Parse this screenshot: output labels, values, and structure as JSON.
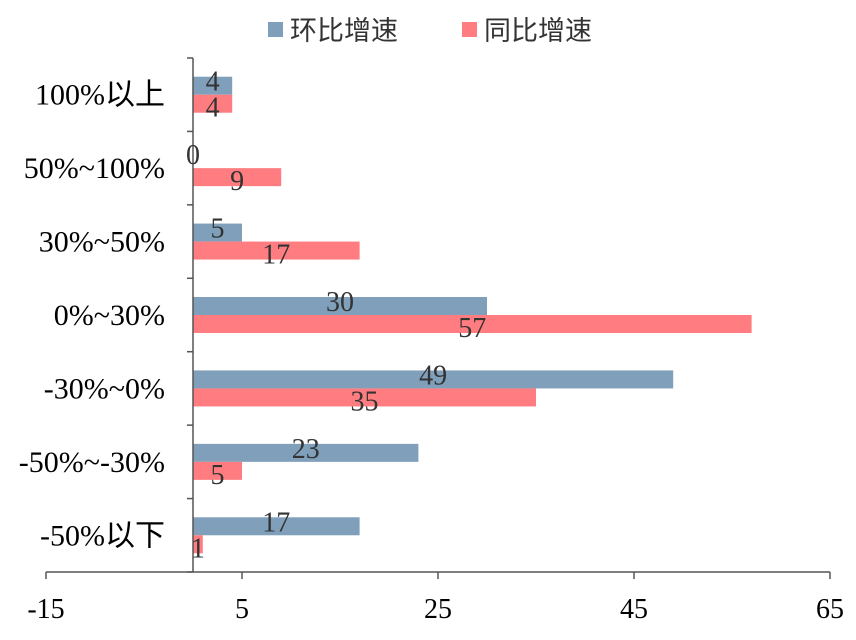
{
  "chart_data": {
    "type": "bar",
    "orientation": "horizontal",
    "categories": [
      "100%以上",
      "50%~100%",
      "30%~50%",
      "0%~30%",
      "-30%~0%",
      "-50%~-30%",
      "-50%以下"
    ],
    "series": [
      {
        "name": "环比增速",
        "values": [
          4,
          0,
          5,
          30,
          49,
          23,
          17
        ],
        "color": "#7f9fba"
      },
      {
        "name": "同比增速",
        "values": [
          4,
          9,
          17,
          57,
          35,
          5,
          1
        ],
        "color": "#ff7c80"
      }
    ],
    "xlim": [
      -15,
      65
    ],
    "xticks": [
      -15,
      5,
      25,
      45,
      65
    ],
    "xtick_labels": [
      "-15",
      "5",
      "25",
      "45",
      "65"
    ],
    "legend_position": "top-center",
    "grid": false,
    "title": "",
    "xlabel": "",
    "ylabel": ""
  }
}
